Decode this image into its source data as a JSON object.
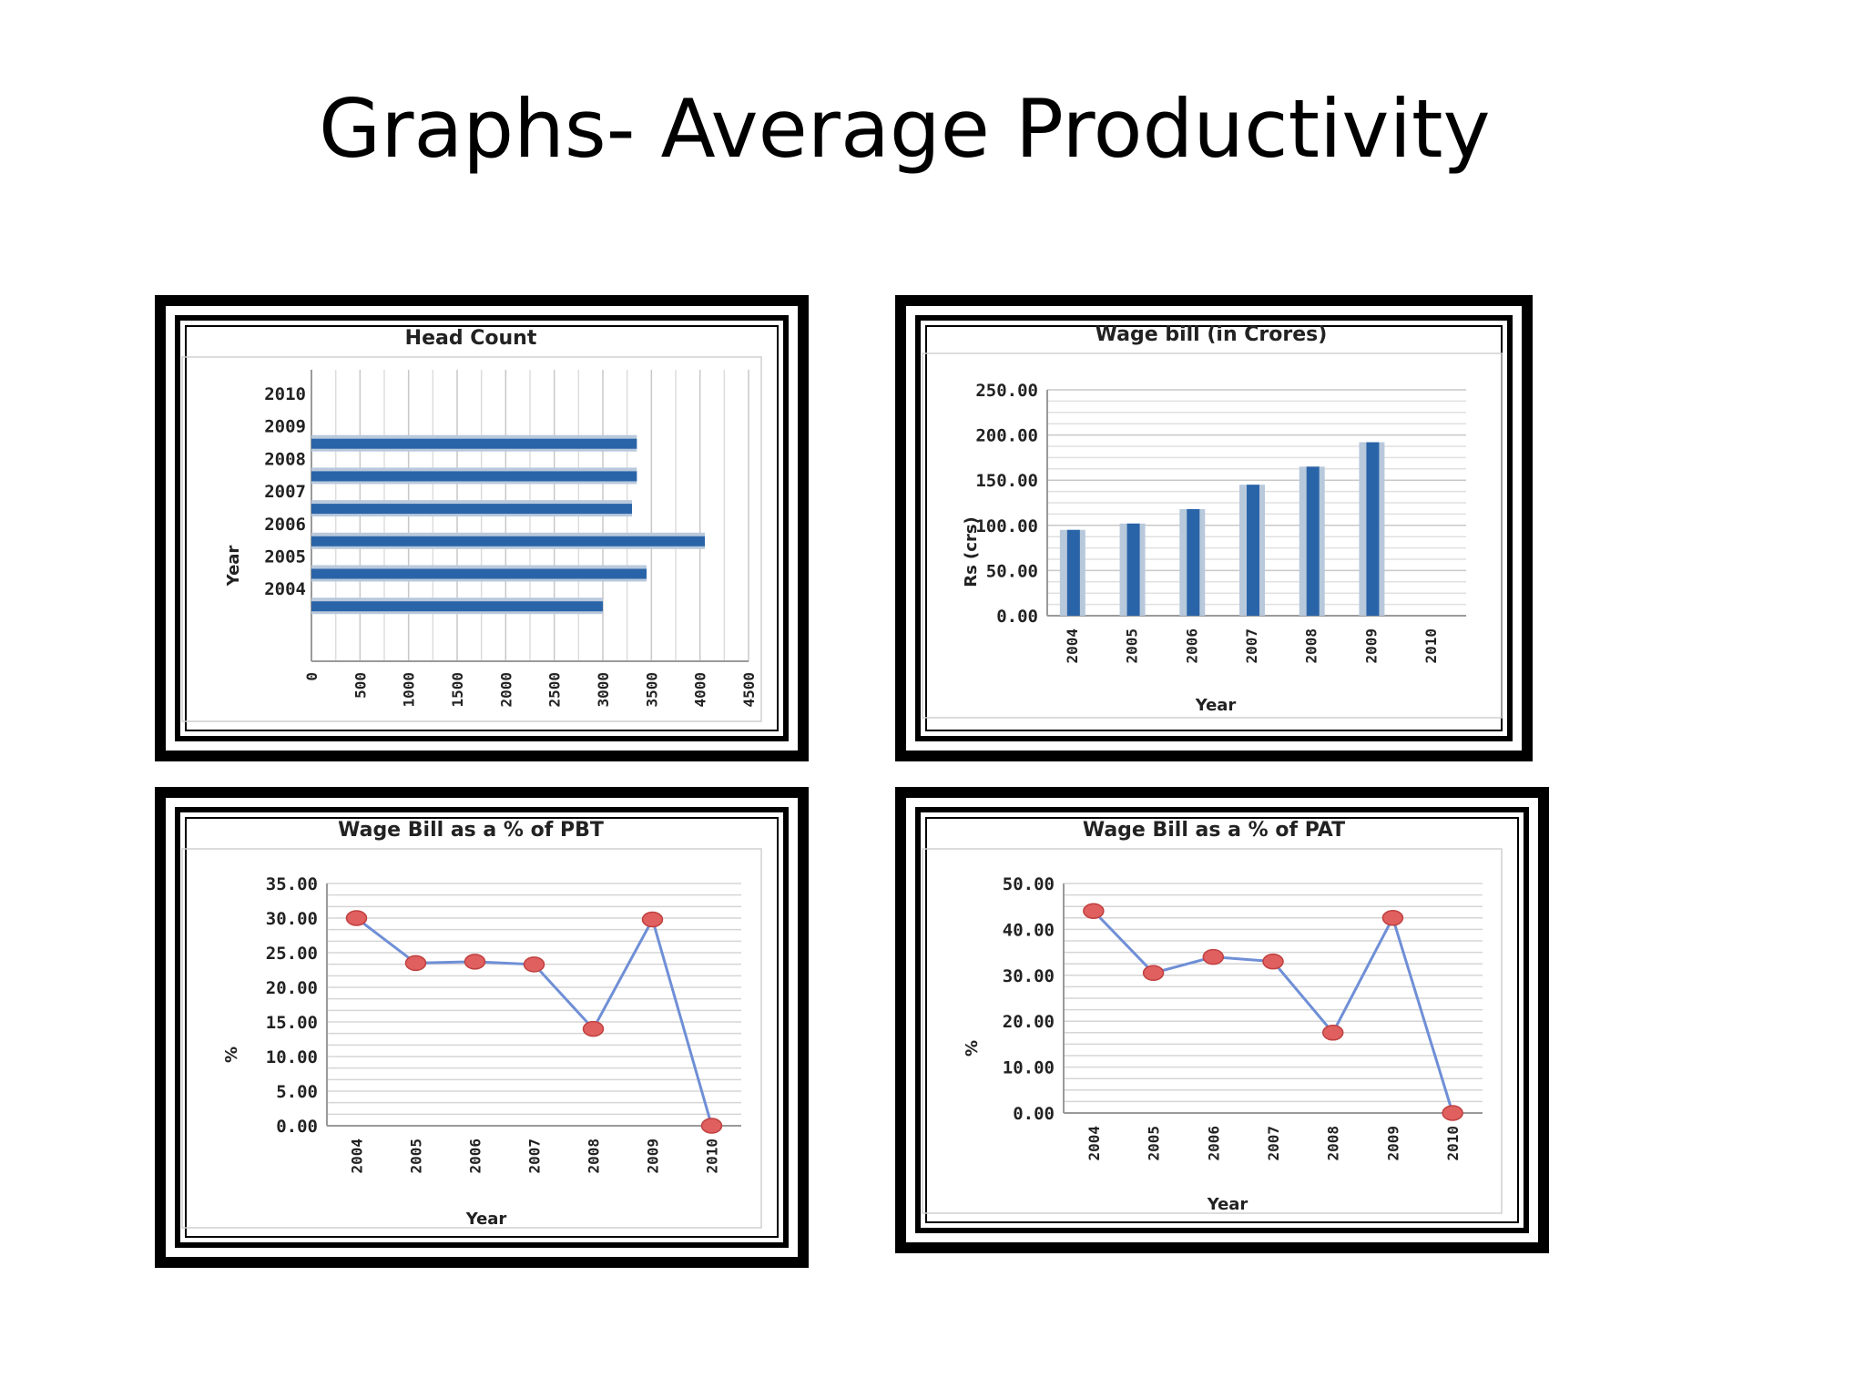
{
  "slide": {
    "title": "Graphs- Average Productivity"
  },
  "colors": {
    "bar": "#2a64a8",
    "bar_highlight": "#b9c9dc",
    "line": "#6f8fd6",
    "marker": "#e06060",
    "grid": "#c8c8c8"
  },
  "chart_data": [
    {
      "type": "bar",
      "orientation": "horizontal",
      "title": "Head Count",
      "ylabel": "Year",
      "xlabel": "",
      "categories": [
        "2004",
        "2005",
        "2006",
        "2007",
        "2008",
        "2009",
        "2010"
      ],
      "values": [
        3000,
        3450,
        4050,
        3300,
        3350,
        3350,
        0
      ],
      "xticks": [
        "0",
        "500",
        "1000",
        "1500",
        "2000",
        "2500",
        "3000",
        "3500",
        "4000",
        "4500"
      ],
      "xlim": [
        0,
        4500
      ],
      "grid": "vertical"
    },
    {
      "type": "bar",
      "title": "Wage bill (in Crores)",
      "ylabel": "Rs (crs)",
      "xlabel": "Year",
      "categories": [
        "2004",
        "2005",
        "2006",
        "2007",
        "2008",
        "2009",
        "2010"
      ],
      "values": [
        95,
        102,
        118,
        145,
        165,
        192,
        0
      ],
      "yticks": [
        "0.00",
        "50.00",
        "100.00",
        "150.00",
        "200.00",
        "250.00"
      ],
      "ylim": [
        0,
        250
      ],
      "grid": "horizontal"
    },
    {
      "type": "line",
      "title": "Wage Bill as a % of PBT",
      "ylabel": "%",
      "xlabel": "Year",
      "categories": [
        "2004",
        "2005",
        "2006",
        "2007",
        "2008",
        "2009",
        "2010"
      ],
      "values": [
        30.0,
        23.5,
        23.7,
        23.3,
        14.0,
        29.8,
        0.0
      ],
      "yticks": [
        "0.00",
        "5.00",
        "10.00",
        "15.00",
        "20.00",
        "25.00",
        "30.00",
        "35.00"
      ],
      "ylim": [
        0,
        35
      ],
      "grid": "horizontal"
    },
    {
      "type": "line",
      "title": "Wage Bill as a % of PAT",
      "ylabel": "%",
      "xlabel": "Year",
      "categories": [
        "2004",
        "2005",
        "2006",
        "2007",
        "2008",
        "2009",
        "2010"
      ],
      "values": [
        44.0,
        30.5,
        34.0,
        33.0,
        17.5,
        42.5,
        0.0
      ],
      "yticks": [
        "0.00",
        "10.00",
        "20.00",
        "30.00",
        "40.00",
        "50.00"
      ],
      "ylim": [
        0,
        50
      ],
      "grid": "horizontal"
    }
  ]
}
